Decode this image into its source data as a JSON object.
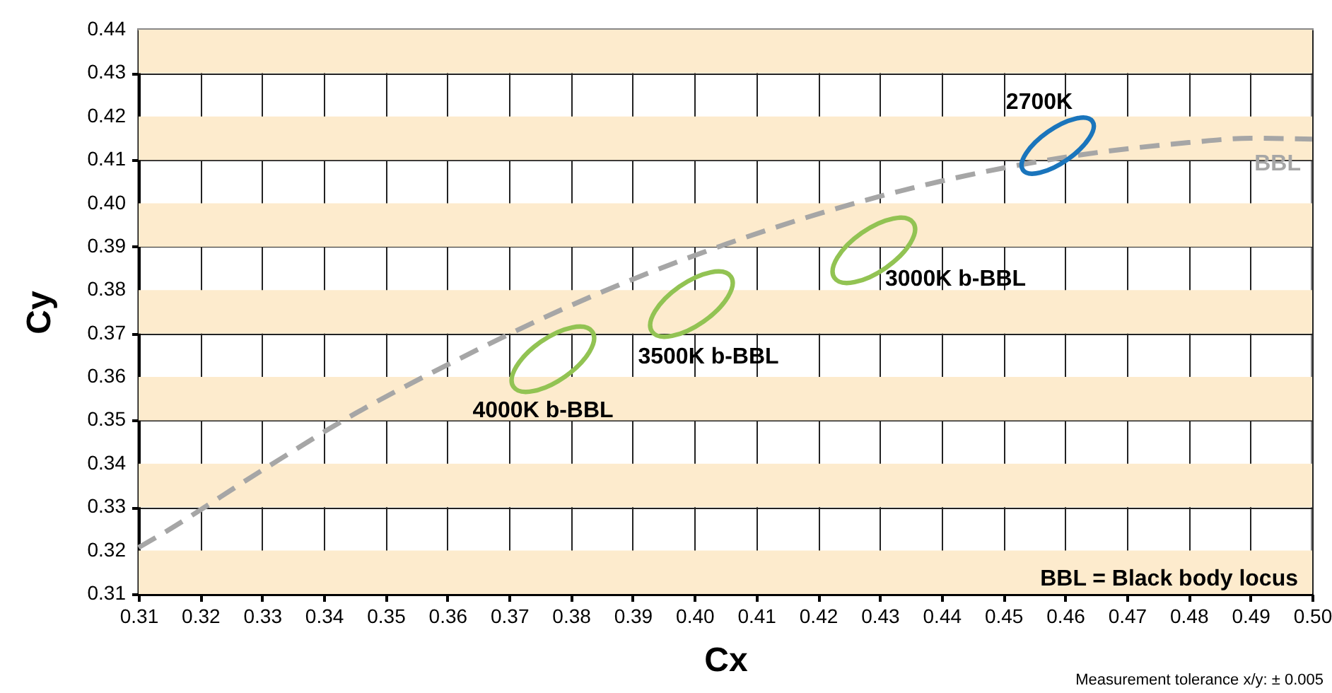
{
  "chart_data": {
    "type": "line",
    "xlabel": "Cx",
    "ylabel": "Cy",
    "xlim": [
      0.31,
      0.5
    ],
    "ylim": [
      0.31,
      0.44
    ],
    "xticks": [
      0.31,
      0.32,
      0.33,
      0.34,
      0.35,
      0.36,
      0.37,
      0.38,
      0.39,
      {
        "value": 0.4,
        "label": "0.40"
      },
      0.41,
      0.42,
      0.43,
      0.44,
      0.45,
      0.46,
      0.47,
      0.48,
      0.49,
      {
        "value": 0.5,
        "label": "0.50"
      }
    ],
    "yticks": [
      0.31,
      0.32,
      0.33,
      0.34,
      0.35,
      0.36,
      0.37,
      0.38,
      0.39,
      {
        "value": 0.4,
        "label": "0.40"
      },
      0.41,
      0.42,
      0.43,
      0.44
    ],
    "grid": true,
    "bands": [
      {
        "axis": "y",
        "from": 0.31,
        "to": 0.32,
        "color": "#fdebcd"
      },
      {
        "axis": "y",
        "from": 0.33,
        "to": 0.34,
        "color": "#fdebcd"
      },
      {
        "axis": "y",
        "from": 0.35,
        "to": 0.36,
        "color": "#fdebcd"
      },
      {
        "axis": "y",
        "from": 0.37,
        "to": 0.38,
        "color": "#fdebcd"
      },
      {
        "axis": "y",
        "from": 0.39,
        "to": 0.4,
        "color": "#fdebcd"
      },
      {
        "axis": "y",
        "from": 0.41,
        "to": 0.42,
        "color": "#fdebcd"
      },
      {
        "axis": "y",
        "from": 0.43,
        "to": 0.44,
        "color": "#fdebcd"
      }
    ],
    "series": [
      {
        "name": "BBL",
        "color": "#a6a6a6",
        "line_style": "dashed",
        "x": [
          0.31,
          0.3135,
          0.33,
          0.3451,
          0.36,
          0.3805,
          0.4053,
          0.4369,
          0.4599,
          0.48,
          0.49,
          0.5
        ],
        "values": [
          0.3207,
          0.3236,
          0.3385,
          0.3516,
          0.3628,
          0.3768,
          0.3907,
          0.4041,
          0.4106,
          0.414,
          0.415,
          0.4148
        ]
      }
    ],
    "annotations": [
      "2700K",
      "3000K b-BBL",
      "3500K b-BBL",
      "4000K b-BBL",
      "BBL = Black body locus",
      "Measurement tolerance x/y: ± 0.005"
    ]
  }
}
